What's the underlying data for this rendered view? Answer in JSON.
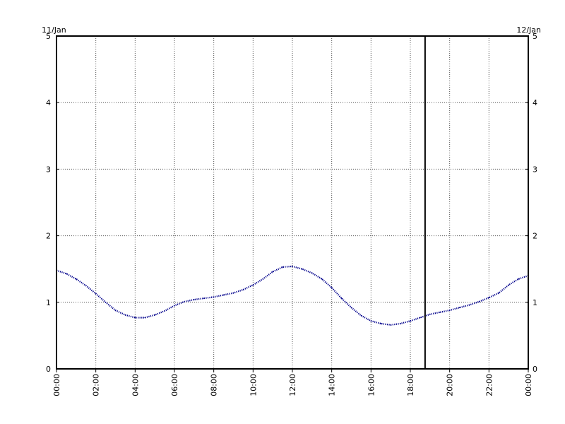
{
  "chart_data": {
    "type": "line",
    "title": "",
    "xlabel": "",
    "ylabel": "",
    "date_labels": {
      "left": "11/Jan",
      "right": "12/Jan"
    },
    "x_tick_labels": [
      "00:00",
      "02:00",
      "04:00",
      "06:00",
      "08:00",
      "10:00",
      "12:00",
      "14:00",
      "16:00",
      "18:00",
      "20:00",
      "22:00",
      "00:00"
    ],
    "y_tick_labels": [
      "0",
      "1",
      "2",
      "3",
      "4",
      "5"
    ],
    "xlim": [
      "00:00",
      "24:00"
    ],
    "ylim": [
      0,
      5
    ],
    "grid": true,
    "marker_time": "18:45",
    "series": [
      {
        "color": "#00008b",
        "x": [
          "00:00",
          "00:30",
          "01:00",
          "01:30",
          "02:00",
          "02:30",
          "03:00",
          "03:30",
          "04:00",
          "04:30",
          "05:00",
          "05:30",
          "06:00",
          "06:30",
          "07:00",
          "07:30",
          "08:00",
          "08:30",
          "09:00",
          "09:30",
          "10:00",
          "10:30",
          "11:00",
          "11:30",
          "12:00",
          "12:30",
          "13:00",
          "13:30",
          "14:00",
          "14:30",
          "15:00",
          "15:30",
          "16:00",
          "16:30",
          "17:00",
          "17:30",
          "18:00",
          "18:30",
          "19:00",
          "19:30",
          "20:00",
          "20:30",
          "21:00",
          "21:30",
          "22:00",
          "22:30",
          "23:00",
          "23:30",
          "24:00"
        ],
        "values": [
          1.48,
          1.43,
          1.35,
          1.25,
          1.13,
          1.0,
          0.88,
          0.81,
          0.77,
          0.77,
          0.81,
          0.87,
          0.95,
          1.01,
          1.04,
          1.06,
          1.08,
          1.11,
          1.14,
          1.19,
          1.26,
          1.35,
          1.46,
          1.53,
          1.54,
          1.5,
          1.44,
          1.35,
          1.22,
          1.06,
          0.92,
          0.8,
          0.72,
          0.68,
          0.66,
          0.68,
          0.72,
          0.77,
          0.82,
          0.85,
          0.88,
          0.92,
          0.96,
          1.01,
          1.07,
          1.14,
          1.26,
          1.35,
          1.4
        ]
      }
    ]
  }
}
